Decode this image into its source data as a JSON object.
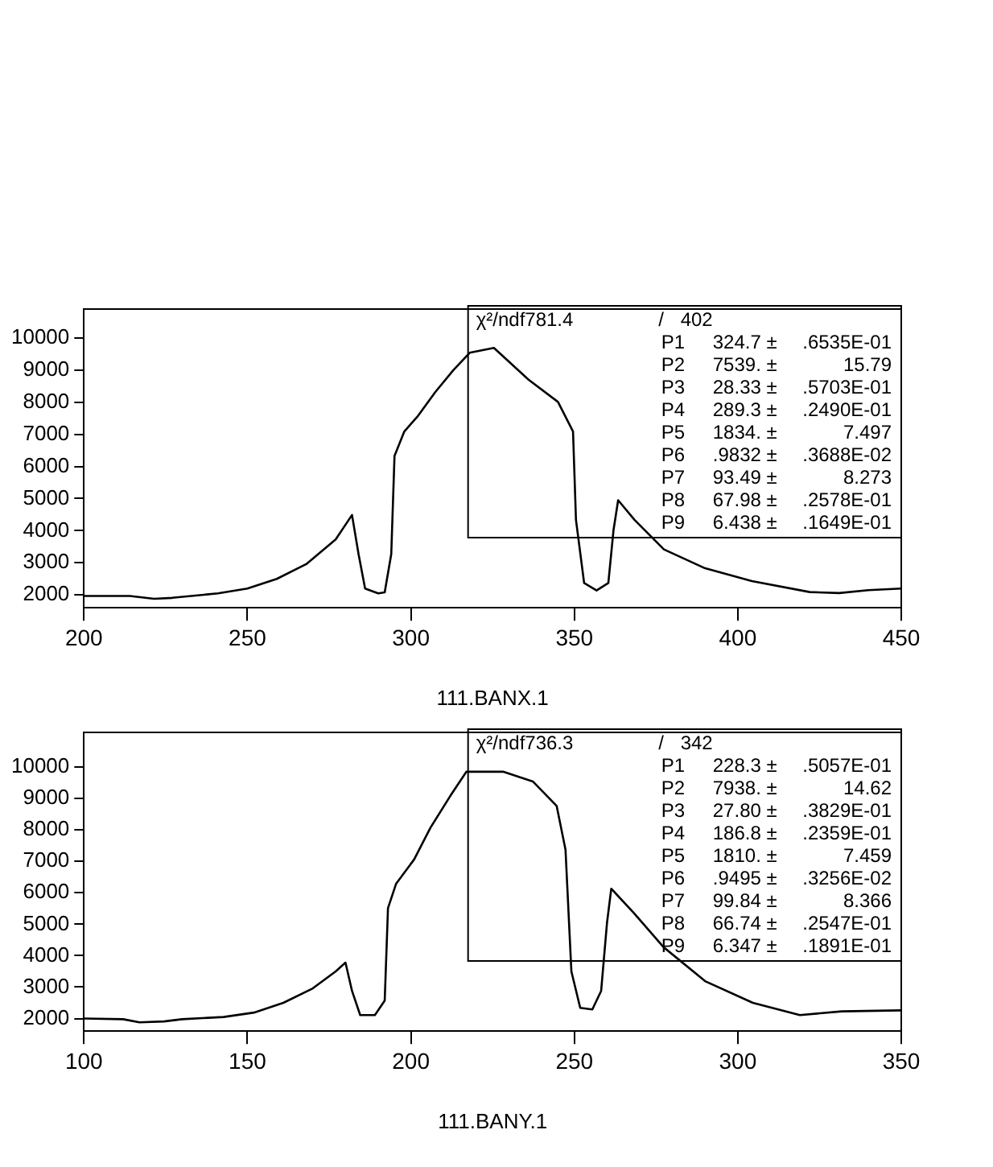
{
  "chart_data": [
    {
      "type": "line",
      "xlabel": "111.BANX.1",
      "xlim": [
        200,
        450
      ],
      "ylim": [
        1600,
        10900
      ],
      "xticks": [
        200,
        250,
        300,
        350,
        400,
        450
      ],
      "yticks": [
        2000,
        3000,
        4000,
        5000,
        6000,
        7000,
        8000,
        9000,
        10000
      ],
      "grid": false,
      "legend": false,
      "marker": "none",
      "line_style": "solid",
      "x": [
        200,
        214,
        221.5,
        227,
        241,
        250,
        259,
        268,
        277,
        282,
        284,
        286,
        290,
        292,
        294,
        295,
        298,
        302,
        307.5,
        313,
        318,
        325.4,
        336,
        345,
        349.6,
        350.5,
        353,
        356.8,
        360.4,
        362,
        363.4,
        368.4,
        377.4,
        390,
        404.3,
        422,
        431,
        440,
        450
      ],
      "series": [
        {
          "color": "#000000",
          "values": [
            1970,
            1970,
            1880,
            1910,
            2050,
            2200,
            2500,
            2960,
            3730,
            4490,
            3270,
            2200,
            2050,
            2080,
            3270,
            6330,
            7090,
            7550,
            8320,
            9000,
            9540,
            9690,
            8700,
            8010,
            7090,
            4340,
            2370,
            2140,
            2370,
            4030,
            4950,
            4340,
            3420,
            2830,
            2430,
            2090,
            2060,
            2150,
            2200
          ]
        }
      ],
      "annotations": [
        "χ²/ndf781.4\t/\t402",
        "P1\t324.7 ±\t.6535E-01",
        "P2\t7539. ±\t15.79",
        "P3\t28.33 ±\t.5703E-01",
        "P4\t289.3 ±\t.2490E-01",
        "P5\t1834. ±\t7.497",
        "P6\t.9832 ±\t.3688E-02",
        "P7\t93.49 ±\t8.273",
        "P8\t67.98 ±\t.2578E-01",
        "P9\t6.438 ±\t.1649E-01"
      ]
    },
    {
      "type": "line",
      "xlabel": "111.BANY.1",
      "xlim": [
        100,
        350
      ],
      "ylim": [
        1600,
        11100
      ],
      "xticks": [
        100,
        150,
        200,
        250,
        300,
        350
      ],
      "yticks": [
        2000,
        3000,
        4000,
        5000,
        6000,
        7000,
        8000,
        9000,
        10000
      ],
      "grid": false,
      "legend": false,
      "marker": "none",
      "line_style": "solid",
      "x": [
        100,
        112,
        117,
        124.5,
        130,
        142.7,
        152,
        161,
        170,
        177,
        180,
        182,
        184.5,
        189,
        192,
        193,
        195.5,
        201,
        206,
        212,
        217,
        228.2,
        237.3,
        244.6,
        247.3,
        249.1,
        251.8,
        255.5,
        258.2,
        260,
        261.3,
        268.2,
        277.3,
        290,
        304.6,
        319,
        331.8,
        350
      ],
      "series": [
        {
          "color": "#000000",
          "values": [
            2000,
            1980,
            1880,
            1910,
            1980,
            2050,
            2190,
            2500,
            2960,
            3500,
            3780,
            2880,
            2110,
            2110,
            2570,
            5510,
            6290,
            7060,
            8070,
            9070,
            9850,
            9850,
            9540,
            8760,
            7370,
            3500,
            2340,
            2290,
            2880,
            5050,
            6130,
            5360,
            4270,
            3190,
            2500,
            2110,
            2230,
            2260
          ]
        }
      ],
      "annotations": [
        "χ²/ndf736.3\t/\t342",
        "P1\t228.3 ±\t.5057E-01",
        "P2\t7938. ±\t14.62",
        "P3\t27.80 ±\t.3829E-01",
        "P4\t186.8 ±\t.2359E-01",
        "P5\t1810. ±\t7.459",
        "P6\t.9495 ±\t.3256E-02",
        "P7\t99.84 ±\t8.366",
        "P8\t66.74 ±\t.2547E-01",
        "P9\t6.347 ±\t.1891E-01"
      ]
    }
  ]
}
